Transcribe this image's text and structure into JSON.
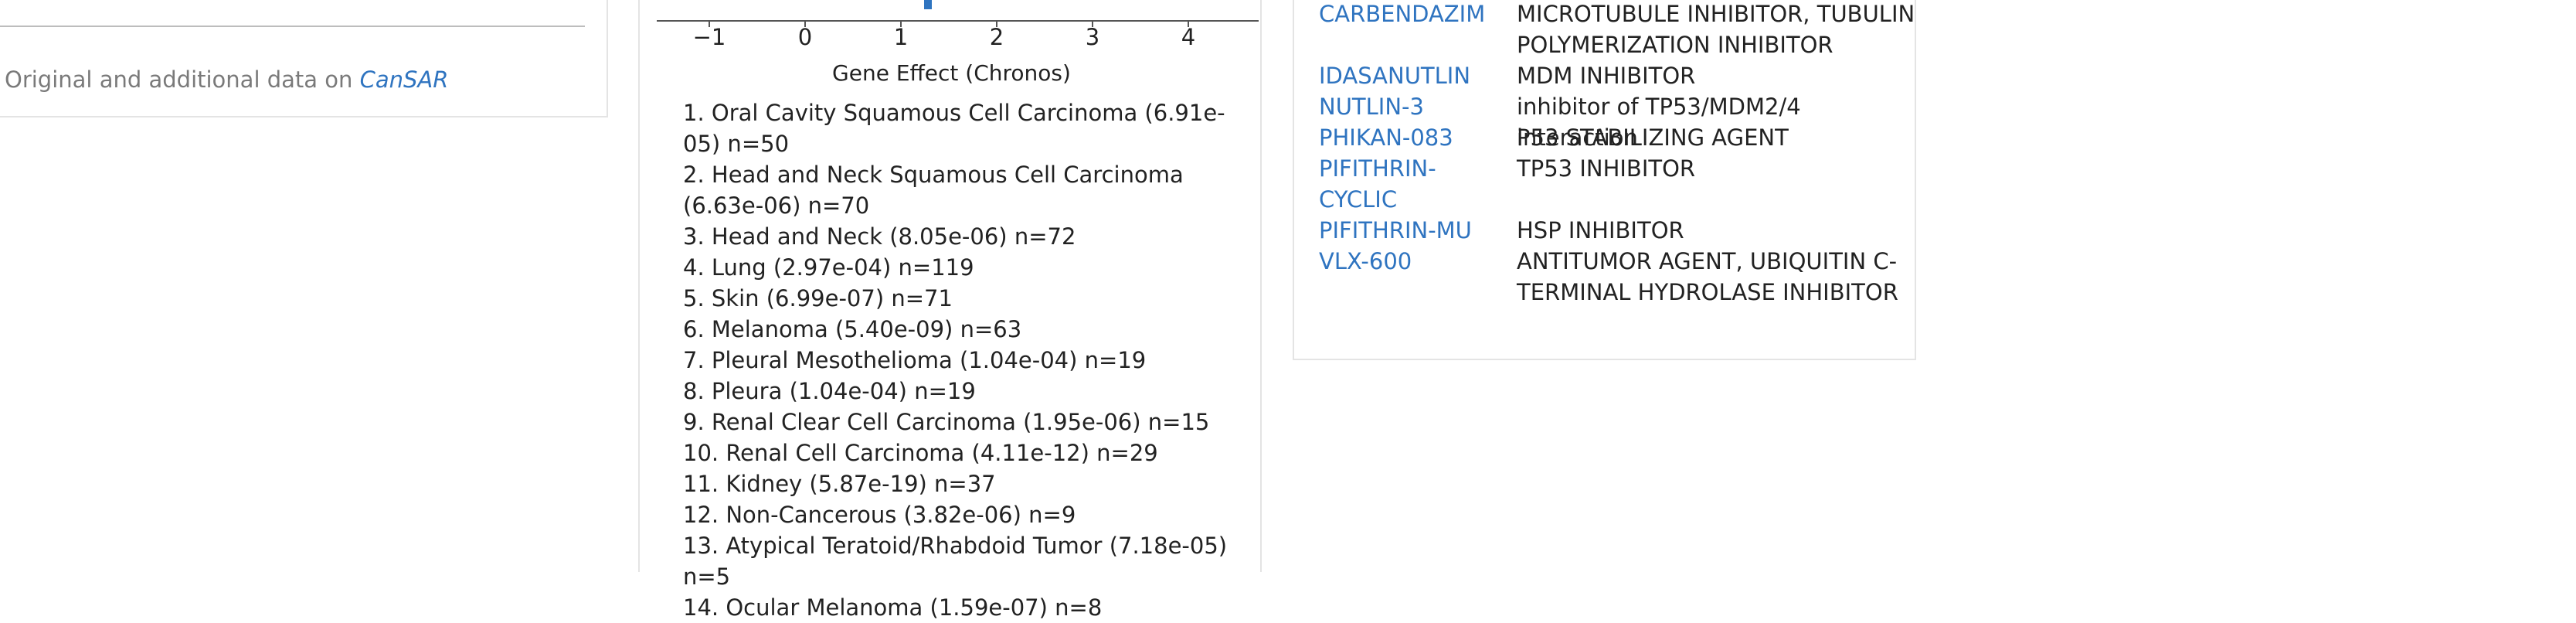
{
  "left": {
    "source_prefix": "Original and additional data on",
    "source_link": "CanSAR"
  },
  "chart": {
    "ticks": [
      "−1",
      "0",
      "1",
      "2",
      "3",
      "4"
    ],
    "axis_title": "Gene Effect (Chronos)"
  },
  "chart_data": {
    "type": "other",
    "xlabel": "Gene Effect (Chronos)",
    "xticks": [
      -1,
      0,
      1,
      2,
      3,
      4
    ]
  },
  "lineages": [
    "1. Oral Cavity Squamous Cell Carcinoma (6.91e-05) n=50",
    "2. Head and Neck Squamous Cell Carcinoma (6.63e-06) n=70",
    "3. Head and Neck (8.05e-06) n=72",
    "4. Lung (2.97e-04) n=119",
    "5. Skin (6.99e-07) n=71",
    "6. Melanoma (5.40e-09) n=63",
    "7. Pleural Mesothelioma (1.04e-04) n=19",
    "8. Pleura (1.04e-04) n=19",
    "9. Renal Clear Cell Carcinoma (1.95e-06) n=15",
    "10. Renal Cell Carcinoma (4.11e-12) n=29",
    "11. Kidney (5.87e-19) n=37",
    "12. Non-Cancerous (3.82e-06) n=9",
    "13. Atypical Teratoid/Rhabdoid Tumor (7.18e-05) n=5",
    "14. Ocular Melanoma (1.59e-07) n=8"
  ],
  "drugs": [
    {
      "name": "CARBENDAZIM",
      "description": "MICROTUBULE INHIBITOR, TUBULIN POLYMERIZATION INHIBITOR"
    },
    {
      "name": "IDASANUTLIN",
      "description": "MDM INHIBITOR"
    },
    {
      "name": "NUTLIN-3",
      "description": "inhibitor of TP53/MDM2/4 interaction"
    },
    {
      "name": "PHIKAN-083",
      "description": "P53 STABILIZING AGENT"
    },
    {
      "name": "PIFITHRIN-CYCLIC",
      "description": "TP53 INHIBITOR"
    },
    {
      "name": "PIFITHRIN-MU",
      "description": "HSP INHIBITOR"
    },
    {
      "name": "VLX-600",
      "description": "ANTITUMOR AGENT, UBIQUITIN C-TERMINAL HYDROLASE INHIBITOR"
    }
  ],
  "colors": {
    "link": "#2f74c0",
    "text": "#222222",
    "muted": "#7a7a7a",
    "border": "#e4e4e4"
  }
}
